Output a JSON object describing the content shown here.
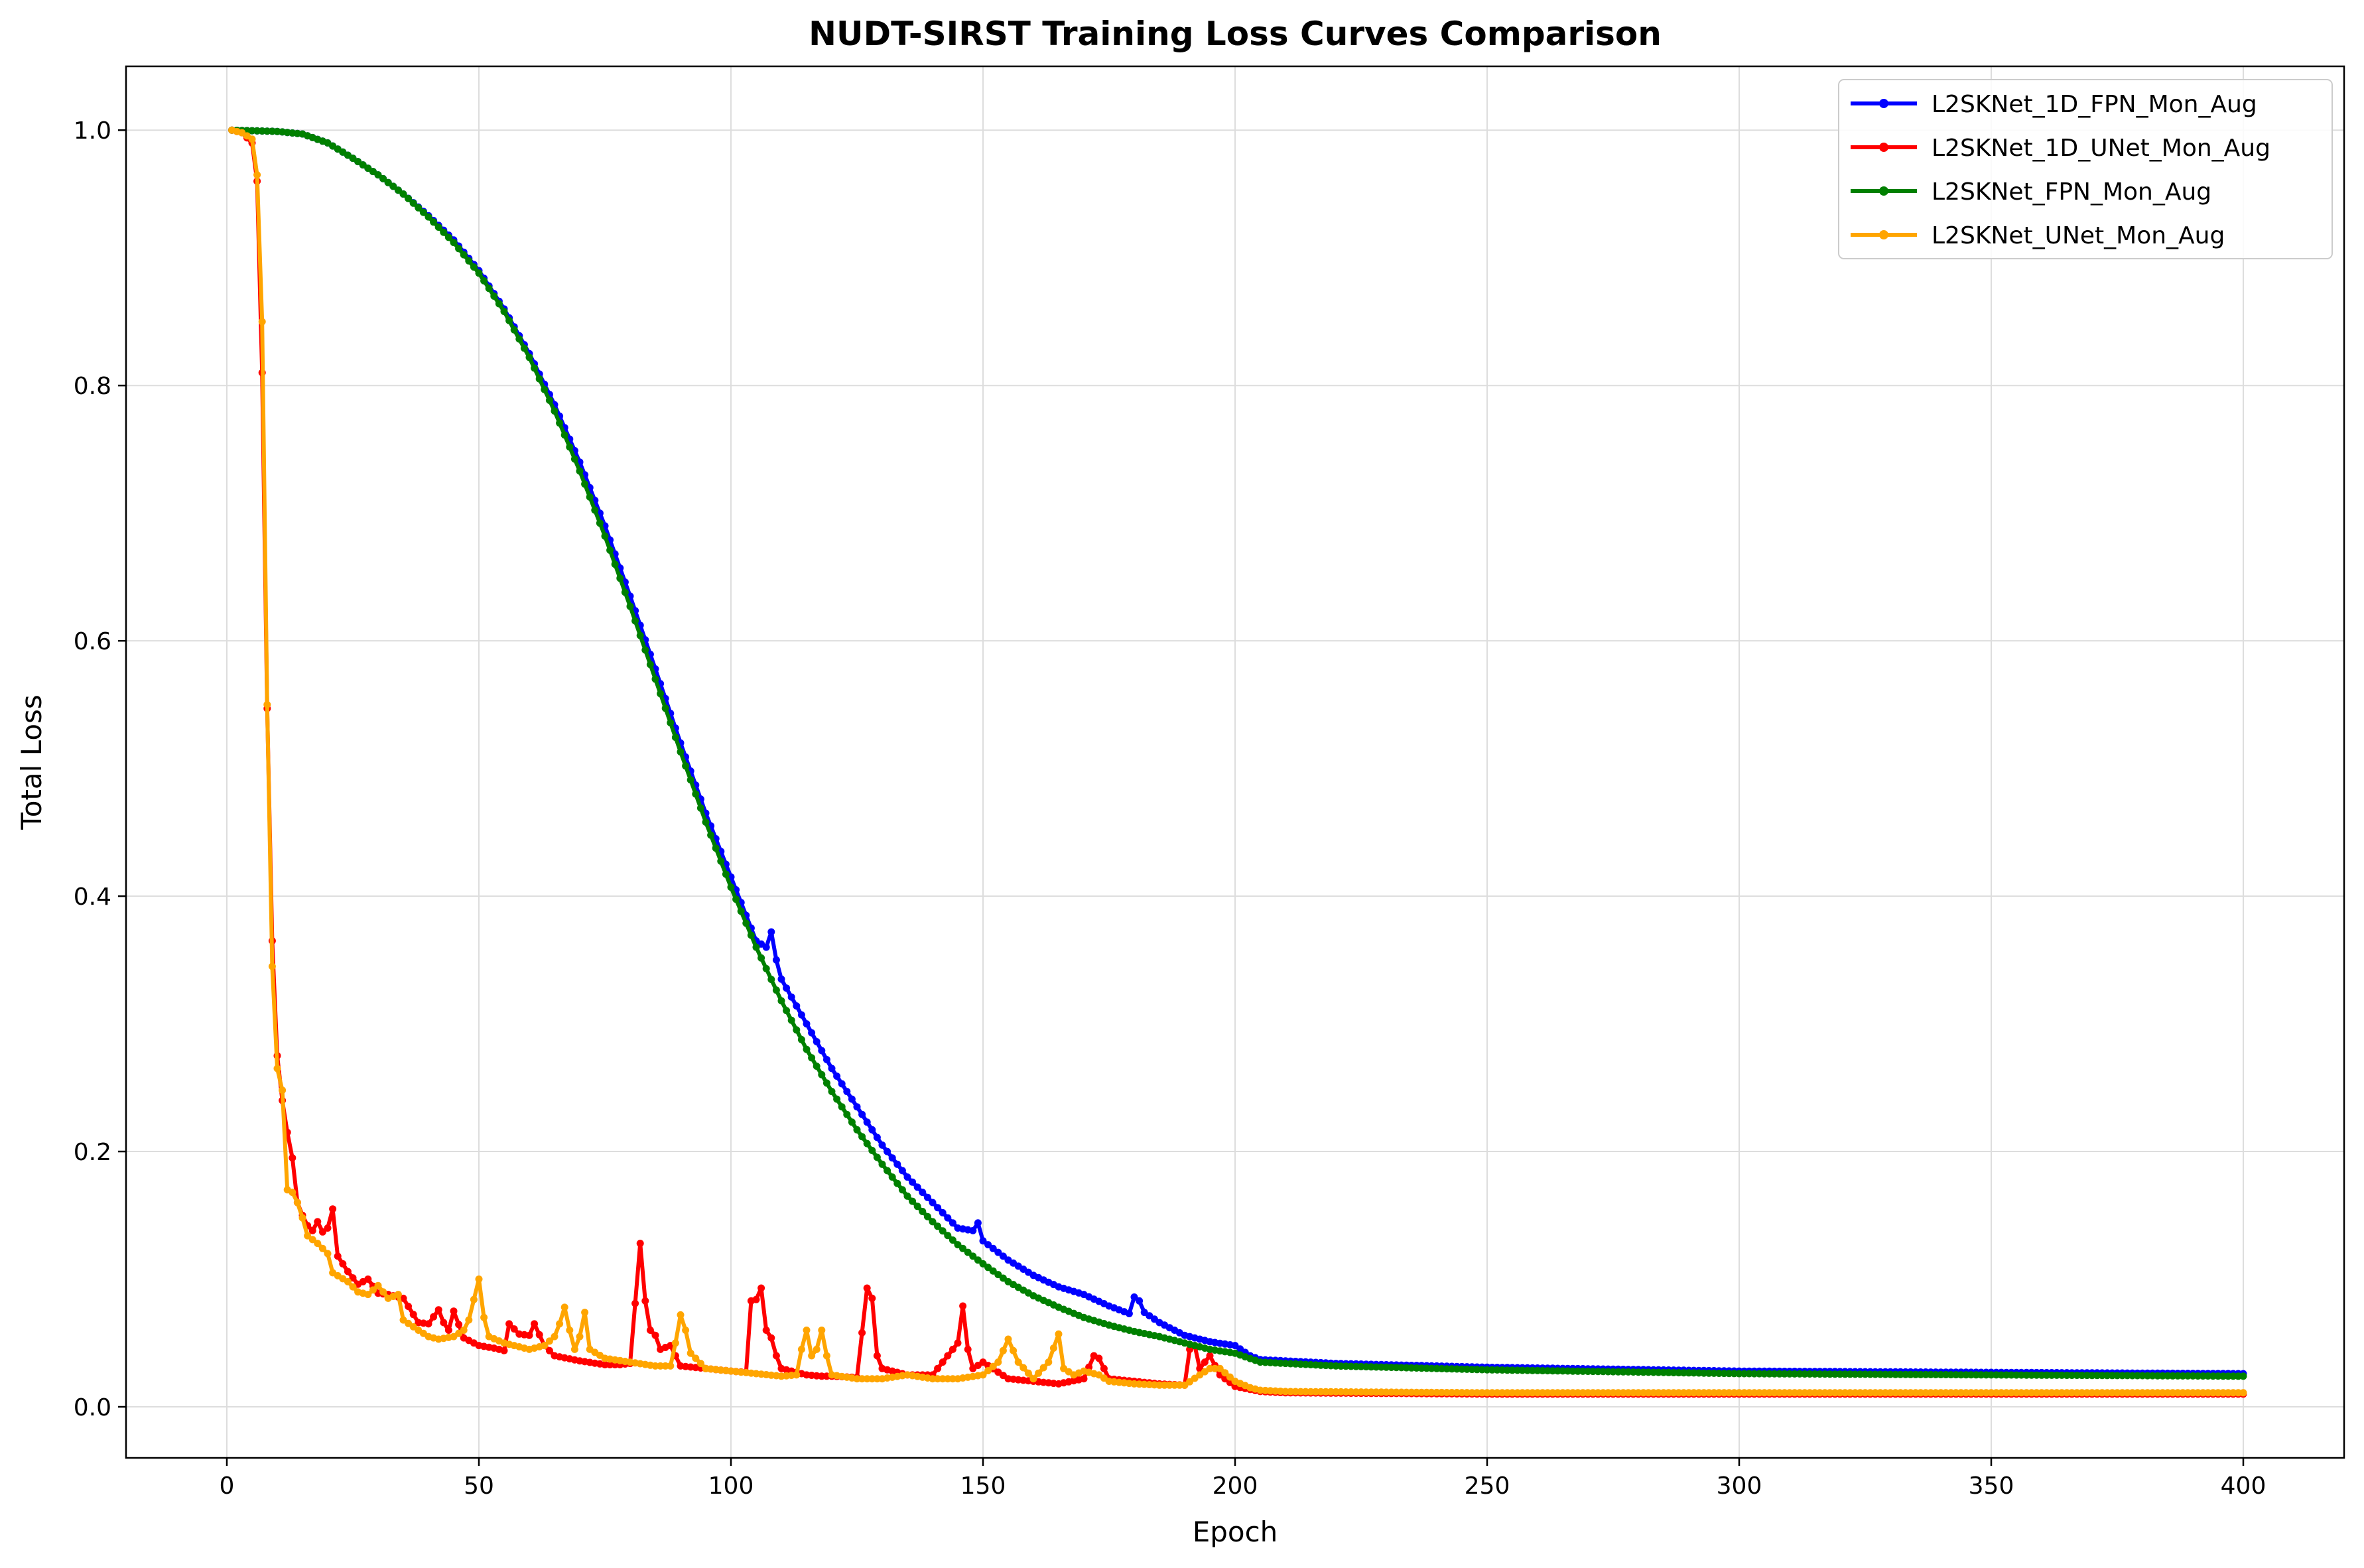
{
  "chart_data": {
    "type": "line",
    "title": "NUDT-SIRST Training Loss Curves Comparison",
    "xlabel": "Epoch",
    "ylabel": "Total Loss",
    "xlim": [
      -20,
      420
    ],
    "ylim": [
      -0.04,
      1.05
    ],
    "xticks": [
      0,
      50,
      100,
      150,
      200,
      250,
      300,
      350,
      400
    ],
    "yticks": [
      0.0,
      0.2,
      0.4,
      0.6,
      0.8,
      1.0
    ],
    "xtick_labels": [
      "0",
      "50",
      "100",
      "150",
      "200",
      "250",
      "300",
      "350",
      "400"
    ],
    "ytick_labels": [
      "0.0",
      "0.2",
      "0.4",
      "0.6",
      "0.8",
      "1.0"
    ],
    "grid": true,
    "legend_position": "top-right",
    "markers": true,
    "series": [
      {
        "name": "L2SKNet_1D_FPN_Mon_Aug",
        "color": "#0000ff",
        "points": [
          [
            1,
            1.0
          ],
          [
            10,
            0.999
          ],
          [
            15,
            0.997
          ],
          [
            20,
            0.99
          ],
          [
            25,
            0.978
          ],
          [
            30,
            0.965
          ],
          [
            35,
            0.95
          ],
          [
            40,
            0.933
          ],
          [
            45,
            0.914
          ],
          [
            50,
            0.89
          ],
          [
            55,
            0.86
          ],
          [
            60,
            0.825
          ],
          [
            65,
            0.785
          ],
          [
            70,
            0.74
          ],
          [
            75,
            0.69
          ],
          [
            80,
            0.635
          ],
          [
            85,
            0.578
          ],
          [
            90,
            0.52
          ],
          [
            95,
            0.465
          ],
          [
            100,
            0.415
          ],
          [
            105,
            0.365
          ],
          [
            107,
            0.36
          ],
          [
            108,
            0.372
          ],
          [
            109,
            0.35
          ],
          [
            110,
            0.335
          ],
          [
            115,
            0.3
          ],
          [
            120,
            0.265
          ],
          [
            125,
            0.235
          ],
          [
            130,
            0.205
          ],
          [
            135,
            0.18
          ],
          [
            140,
            0.16
          ],
          [
            145,
            0.14
          ],
          [
            148,
            0.138
          ],
          [
            149,
            0.144
          ],
          [
            150,
            0.13
          ],
          [
            155,
            0.115
          ],
          [
            160,
            0.103
          ],
          [
            165,
            0.094
          ],
          [
            170,
            0.088
          ],
          [
            175,
            0.079
          ],
          [
            179,
            0.073
          ],
          [
            180,
            0.086
          ],
          [
            181,
            0.083
          ],
          [
            182,
            0.074
          ],
          [
            185,
            0.066
          ],
          [
            190,
            0.056
          ],
          [
            195,
            0.051
          ],
          [
            200,
            0.048
          ],
          [
            203,
            0.04
          ],
          [
            205,
            0.037
          ],
          [
            210,
            0.036
          ],
          [
            220,
            0.034
          ],
          [
            230,
            0.033
          ],
          [
            250,
            0.031
          ],
          [
            300,
            0.028
          ],
          [
            350,
            0.027
          ],
          [
            400,
            0.026
          ]
        ]
      },
      {
        "name": "L2SKNet_1D_UNet_Mon_Aug",
        "color": "#ff0000",
        "points": [
          [
            1,
            1.0
          ],
          [
            3,
            0.998
          ],
          [
            5,
            0.99
          ],
          [
            6,
            0.96
          ],
          [
            7,
            0.81
          ],
          [
            8,
            0.547
          ],
          [
            9,
            0.365
          ],
          [
            10,
            0.275
          ],
          [
            11,
            0.24
          ],
          [
            12,
            0.215
          ],
          [
            13,
            0.195
          ],
          [
            14,
            0.16
          ],
          [
            15,
            0.15
          ],
          [
            16,
            0.142
          ],
          [
            17,
            0.138
          ],
          [
            18,
            0.145
          ],
          [
            19,
            0.137
          ],
          [
            20,
            0.14
          ],
          [
            21,
            0.155
          ],
          [
            22,
            0.118
          ],
          [
            24,
            0.106
          ],
          [
            26,
            0.096
          ],
          [
            28,
            0.1
          ],
          [
            30,
            0.089
          ],
          [
            32,
            0.088
          ],
          [
            35,
            0.085
          ],
          [
            38,
            0.066
          ],
          [
            40,
            0.065
          ],
          [
            42,
            0.076
          ],
          [
            43,
            0.066
          ],
          [
            44,
            0.06
          ],
          [
            45,
            0.075
          ],
          [
            47,
            0.054
          ],
          [
            50,
            0.048
          ],
          [
            53,
            0.046
          ],
          [
            55,
            0.044
          ],
          [
            56,
            0.065
          ],
          [
            58,
            0.057
          ],
          [
            60,
            0.056
          ],
          [
            61,
            0.065
          ],
          [
            63,
            0.048
          ],
          [
            65,
            0.04
          ],
          [
            70,
            0.036
          ],
          [
            75,
            0.033
          ],
          [
            78,
            0.033
          ],
          [
            80,
            0.034
          ],
          [
            82,
            0.128
          ],
          [
            83,
            0.083
          ],
          [
            84,
            0.06
          ],
          [
            85,
            0.056
          ],
          [
            86,
            0.045
          ],
          [
            88,
            0.048
          ],
          [
            90,
            0.032
          ],
          [
            95,
            0.03
          ],
          [
            100,
            0.028
          ],
          [
            103,
            0.027
          ],
          [
            104,
            0.083
          ],
          [
            105,
            0.084
          ],
          [
            106,
            0.093
          ],
          [
            107,
            0.06
          ],
          [
            108,
            0.054
          ],
          [
            109,
            0.04
          ],
          [
            110,
            0.03
          ],
          [
            115,
            0.025
          ],
          [
            118,
            0.024
          ],
          [
            120,
            0.024
          ],
          [
            125,
            0.023
          ],
          [
            127,
            0.093
          ],
          [
            128,
            0.085
          ],
          [
            129,
            0.04
          ],
          [
            130,
            0.03
          ],
          [
            135,
            0.025
          ],
          [
            140,
            0.025
          ],
          [
            145,
            0.05
          ],
          [
            146,
            0.079
          ],
          [
            147,
            0.045
          ],
          [
            148,
            0.03
          ],
          [
            150,
            0.035
          ],
          [
            155,
            0.022
          ],
          [
            160,
            0.02
          ],
          [
            165,
            0.018
          ],
          [
            170,
            0.022
          ],
          [
            172,
            0.04
          ],
          [
            173,
            0.038
          ],
          [
            175,
            0.022
          ],
          [
            180,
            0.02
          ],
          [
            185,
            0.018
          ],
          [
            190,
            0.017
          ],
          [
            191,
            0.045
          ],
          [
            192,
            0.048
          ],
          [
            193,
            0.03
          ],
          [
            195,
            0.04
          ],
          [
            197,
            0.025
          ],
          [
            200,
            0.016
          ],
          [
            205,
            0.012
          ],
          [
            210,
            0.011
          ],
          [
            250,
            0.01
          ],
          [
            300,
            0.01
          ],
          [
            350,
            0.01
          ],
          [
            400,
            0.01
          ]
        ]
      },
      {
        "name": "L2SKNet_FPN_Mon_Aug",
        "color": "#008000",
        "points": [
          [
            1,
            1.0
          ],
          [
            10,
            0.999
          ],
          [
            15,
            0.997
          ],
          [
            20,
            0.99
          ],
          [
            25,
            0.978
          ],
          [
            30,
            0.965
          ],
          [
            35,
            0.95
          ],
          [
            40,
            0.932
          ],
          [
            45,
            0.912
          ],
          [
            50,
            0.888
          ],
          [
            55,
            0.858
          ],
          [
            60,
            0.822
          ],
          [
            65,
            0.78
          ],
          [
            70,
            0.733
          ],
          [
            75,
            0.682
          ],
          [
            80,
            0.627
          ],
          [
            85,
            0.57
          ],
          [
            90,
            0.513
          ],
          [
            95,
            0.458
          ],
          [
            100,
            0.407
          ],
          [
            105,
            0.36
          ],
          [
            110,
            0.318
          ],
          [
            115,
            0.28
          ],
          [
            120,
            0.247
          ],
          [
            125,
            0.217
          ],
          [
            130,
            0.19
          ],
          [
            135,
            0.165
          ],
          [
            140,
            0.145
          ],
          [
            145,
            0.127
          ],
          [
            150,
            0.112
          ],
          [
            155,
            0.098
          ],
          [
            160,
            0.087
          ],
          [
            165,
            0.078
          ],
          [
            170,
            0.07
          ],
          [
            175,
            0.064
          ],
          [
            180,
            0.059
          ],
          [
            185,
            0.055
          ],
          [
            190,
            0.05
          ],
          [
            195,
            0.045
          ],
          [
            200,
            0.042
          ],
          [
            205,
            0.035
          ],
          [
            210,
            0.034
          ],
          [
            220,
            0.032
          ],
          [
            230,
            0.031
          ],
          [
            250,
            0.029
          ],
          [
            300,
            0.026
          ],
          [
            350,
            0.025
          ],
          [
            400,
            0.024
          ]
        ]
      },
      {
        "name": "L2SKNet_UNet_Mon_Aug",
        "color": "#ffa500",
        "points": [
          [
            1,
            1.0
          ],
          [
            3,
            0.998
          ],
          [
            5,
            0.993
          ],
          [
            6,
            0.965
          ],
          [
            7,
            0.85
          ],
          [
            8,
            0.55
          ],
          [
            9,
            0.345
          ],
          [
            10,
            0.265
          ],
          [
            11,
            0.248
          ],
          [
            12,
            0.17
          ],
          [
            13,
            0.168
          ],
          [
            14,
            0.16
          ],
          [
            15,
            0.148
          ],
          [
            16,
            0.134
          ],
          [
            18,
            0.128
          ],
          [
            20,
            0.12
          ],
          [
            21,
            0.105
          ],
          [
            24,
            0.098
          ],
          [
            26,
            0.09
          ],
          [
            28,
            0.088
          ],
          [
            30,
            0.095
          ],
          [
            32,
            0.085
          ],
          [
            34,
            0.088
          ],
          [
            35,
            0.068
          ],
          [
            38,
            0.06
          ],
          [
            40,
            0.055
          ],
          [
            42,
            0.053
          ],
          [
            45,
            0.055
          ],
          [
            47,
            0.06
          ],
          [
            48,
            0.068
          ],
          [
            49,
            0.084
          ],
          [
            50,
            0.1
          ],
          [
            51,
            0.07
          ],
          [
            52,
            0.055
          ],
          [
            55,
            0.05
          ],
          [
            60,
            0.045
          ],
          [
            63,
            0.048
          ],
          [
            65,
            0.055
          ],
          [
            66,
            0.065
          ],
          [
            67,
            0.078
          ],
          [
            68,
            0.06
          ],
          [
            69,
            0.045
          ],
          [
            70,
            0.055
          ],
          [
            71,
            0.074
          ],
          [
            72,
            0.045
          ],
          [
            75,
            0.038
          ],
          [
            80,
            0.035
          ],
          [
            85,
            0.032
          ],
          [
            88,
            0.032
          ],
          [
            89,
            0.05
          ],
          [
            90,
            0.072
          ],
          [
            91,
            0.06
          ],
          [
            92,
            0.042
          ],
          [
            95,
            0.03
          ],
          [
            100,
            0.028
          ],
          [
            105,
            0.026
          ],
          [
            110,
            0.024
          ],
          [
            113,
            0.025
          ],
          [
            114,
            0.045
          ],
          [
            115,
            0.06
          ],
          [
            116,
            0.04
          ],
          [
            117,
            0.045
          ],
          [
            118,
            0.06
          ],
          [
            119,
            0.04
          ],
          [
            120,
            0.025
          ],
          [
            125,
            0.022
          ],
          [
            130,
            0.022
          ],
          [
            135,
            0.025
          ],
          [
            140,
            0.022
          ],
          [
            145,
            0.022
          ],
          [
            150,
            0.025
          ],
          [
            153,
            0.035
          ],
          [
            155,
            0.053
          ],
          [
            157,
            0.035
          ],
          [
            160,
            0.022
          ],
          [
            163,
            0.035
          ],
          [
            165,
            0.057
          ],
          [
            166,
            0.03
          ],
          [
            168,
            0.025
          ],
          [
            170,
            0.028
          ],
          [
            173,
            0.025
          ],
          [
            175,
            0.02
          ],
          [
            180,
            0.018
          ],
          [
            185,
            0.017
          ],
          [
            190,
            0.017
          ],
          [
            193,
            0.025
          ],
          [
            195,
            0.03
          ],
          [
            197,
            0.03
          ],
          [
            200,
            0.02
          ],
          [
            203,
            0.015
          ],
          [
            205,
            0.013
          ],
          [
            210,
            0.012
          ],
          [
            250,
            0.011
          ],
          [
            300,
            0.011
          ],
          [
            350,
            0.011
          ],
          [
            400,
            0.011
          ]
        ]
      }
    ]
  }
}
